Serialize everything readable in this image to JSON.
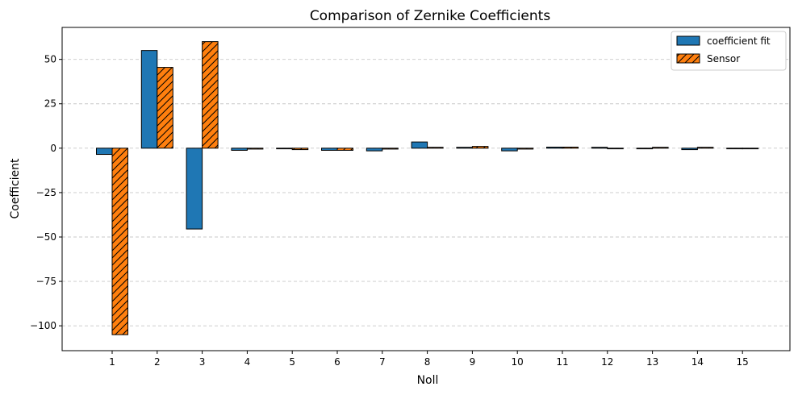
{
  "chart_data": {
    "type": "bar",
    "title": "Comparison of Zernike Coefficients",
    "xlabel": "Noll",
    "ylabel": "Coefficient",
    "categories": [
      "1",
      "2",
      "3",
      "4",
      "5",
      "6",
      "7",
      "8",
      "9",
      "10",
      "11",
      "12",
      "13",
      "14",
      "15"
    ],
    "ylim": [
      -114,
      68
    ],
    "yticks": [
      50,
      25,
      0,
      -25,
      -50,
      -75,
      -100
    ],
    "ytick_labels": [
      "50",
      "25",
      "0",
      "−25",
      "−50",
      "−75",
      "−100"
    ],
    "grid": "y-dashed",
    "legend_position": "top-right",
    "series": [
      {
        "name": "coefficient fit",
        "color": "#1f77b4",
        "hatch": "none",
        "values": [
          -3.5,
          55,
          -45.5,
          -1.2,
          -0.3,
          -1.2,
          -1.5,
          3.5,
          0.5,
          -1.5,
          0.6,
          0.5,
          -0.3,
          -0.8,
          -0.2
        ]
      },
      {
        "name": "Sensor",
        "color": "#ff7f0e",
        "hatch": "diagonal",
        "values": [
          -105,
          45.5,
          60,
          -0.5,
          -0.8,
          -1.2,
          -0.5,
          0.5,
          1.0,
          -0.5,
          0.6,
          -0.3,
          0.5,
          0.5,
          -0.3
        ]
      }
    ]
  }
}
